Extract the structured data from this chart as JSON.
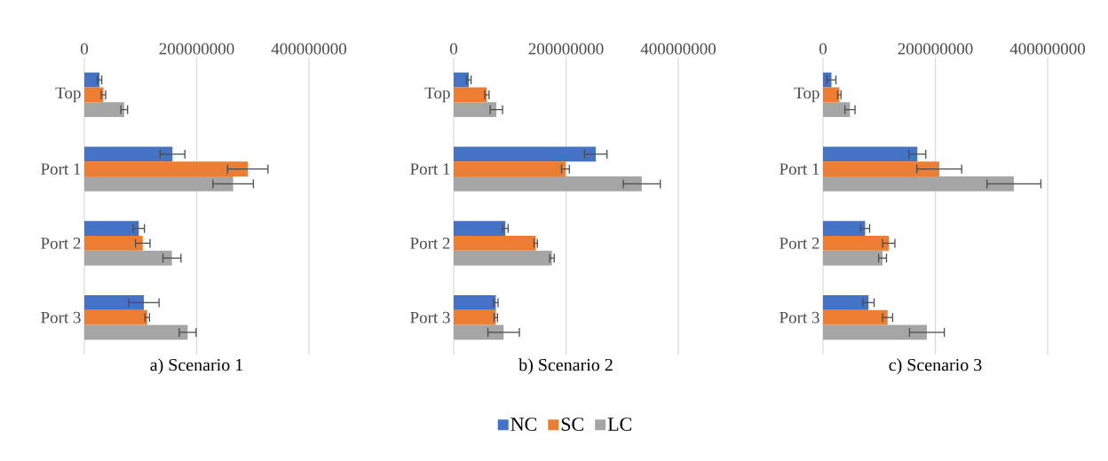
{
  "chart_data": [
    {
      "type": "bar",
      "orientation": "horizontal",
      "title": "a) Scenario 1",
      "categories": [
        "Top",
        "Port 1",
        "Port 2",
        "Port 3"
      ],
      "xlim": [
        0,
        400000000
      ],
      "xticks": [
        0,
        200000000,
        400000000
      ],
      "grid": "x",
      "series": [
        {
          "color": "#4472c4",
          "values": [
            27000000,
            157000000,
            97000000,
            106000000
          ],
          "errors": [
            4000000,
            22000000,
            10000000,
            27000000
          ]
        },
        {
          "color": "#ed7d31",
          "values": [
            34000000,
            291000000,
            104000000,
            112000000
          ],
          "errors": [
            4000000,
            36000000,
            13000000,
            4000000
          ]
        },
        {
          "color": "#a5a5a5",
          "values": [
            71000000,
            265000000,
            156000000,
            184000000
          ],
          "errors": [
            6000000,
            36000000,
            16000000,
            15000000
          ]
        }
      ]
    },
    {
      "type": "bar",
      "orientation": "horizontal",
      "title": "b) Scenario 2",
      "categories": [
        "Top",
        "Port 1",
        "Port 2",
        "Port 3"
      ],
      "xlim": [
        0,
        400000000
      ],
      "xticks": [
        0,
        200000000,
        400000000
      ],
      "grid": "x",
      "legend": "bottom",
      "series": [
        {
          "name": "NC",
          "color": "#4472c4",
          "values": [
            27000000,
            253000000,
            92000000,
            75000000
          ],
          "errors": [
            4000000,
            20000000,
            5000000,
            4000000
          ]
        },
        {
          "name": "SC",
          "color": "#ed7d31",
          "values": [
            59000000,
            199000000,
            146000000,
            75000000
          ],
          "errors": [
            4000000,
            7000000,
            3000000,
            3000000
          ]
        },
        {
          "name": "LC",
          "color": "#a5a5a5",
          "values": [
            76000000,
            335000000,
            175000000,
            89000000
          ],
          "errors": [
            11000000,
            33000000,
            4000000,
            28000000
          ]
        }
      ]
    },
    {
      "type": "bar",
      "orientation": "horizontal",
      "title": "c) Scenario 3",
      "categories": [
        "Top",
        "Port 1",
        "Port 2",
        "Port 3"
      ],
      "xlim": [
        0,
        400000000
      ],
      "xticks": [
        0,
        200000000,
        400000000
      ],
      "grid": "x",
      "series": [
        {
          "color": "#4472c4",
          "values": [
            15000000,
            168000000,
            75000000,
            81000000
          ],
          "errors": [
            8000000,
            15000000,
            8000000,
            10000000
          ]
        },
        {
          "color": "#ed7d31",
          "values": [
            29000000,
            207000000,
            117000000,
            115000000
          ],
          "errors": [
            3000000,
            40000000,
            11000000,
            9000000
          ]
        },
        {
          "color": "#a5a5a5",
          "values": [
            48000000,
            340000000,
            106000000,
            185000000
          ],
          "errors": [
            9000000,
            48000000,
            7000000,
            31000000
          ]
        }
      ]
    }
  ]
}
